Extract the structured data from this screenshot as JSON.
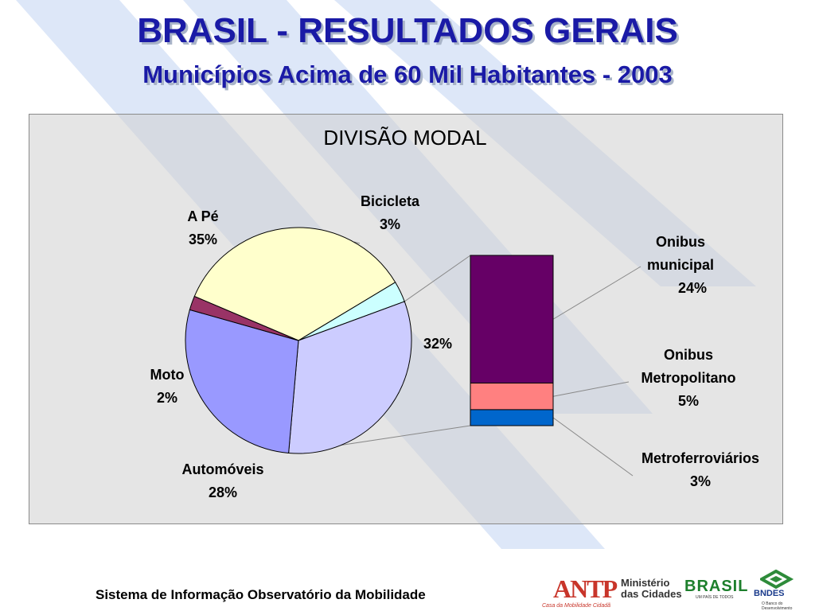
{
  "header": {
    "title": "BRASIL - RESULTADOS GERAIS",
    "subtitle": "Municípios Acima de 60 Mil Habitantes - 2003"
  },
  "chart_data": [
    {
      "type": "pie",
      "title": "DIVISÃO MODAL",
      "slices": [
        {
          "name": "A Pé",
          "value": 35,
          "label_text": "35%",
          "color": "#ffffcc"
        },
        {
          "name": "Bicicleta",
          "value": 3,
          "label_text": "3%",
          "color": "#ccffff"
        },
        {
          "name": "",
          "value": 32,
          "label_text": "32%",
          "color": "#ccccff"
        },
        {
          "name": "Automóveis",
          "value": 28,
          "label_text": "28%",
          "color": "#9999ff"
        },
        {
          "name": "Moto",
          "value": 2,
          "label_text": "2%",
          "color": "#993366"
        }
      ]
    },
    {
      "type": "bar",
      "stacked": true,
      "description_of": "breakdown of the 32% slice",
      "segments": [
        {
          "name": "Onibus municipal",
          "name_lines": [
            "Onibus",
            "municipal"
          ],
          "value": 24,
          "label_text": "24%",
          "color": "#660066"
        },
        {
          "name": "Onibus Metropolitano",
          "name_lines": [
            "Onibus",
            "Metropolitano"
          ],
          "value": 5,
          "label_text": "5%",
          "color": "#ff8080"
        },
        {
          "name": "Metroferroviários",
          "name_lines": [
            "Metroferroviários"
          ],
          "value": 3,
          "label_text": "3%",
          "color": "#0066cc"
        }
      ]
    }
  ],
  "footer": {
    "text": "Sistema de Informação Observatório da Mobilidade",
    "logos": {
      "antp": "ANTP",
      "antp_tagline": "Casa da Mobilidade Cidadã",
      "ministerio_line1": "Ministério",
      "ministerio_line2": "das Cidades",
      "brasil": "BRASIL",
      "brasil_tagline": "UM PAÍS DE TODOS",
      "bndes": "BNDES",
      "bndes_tagline": "O Banco do Desenvolvimento"
    }
  }
}
